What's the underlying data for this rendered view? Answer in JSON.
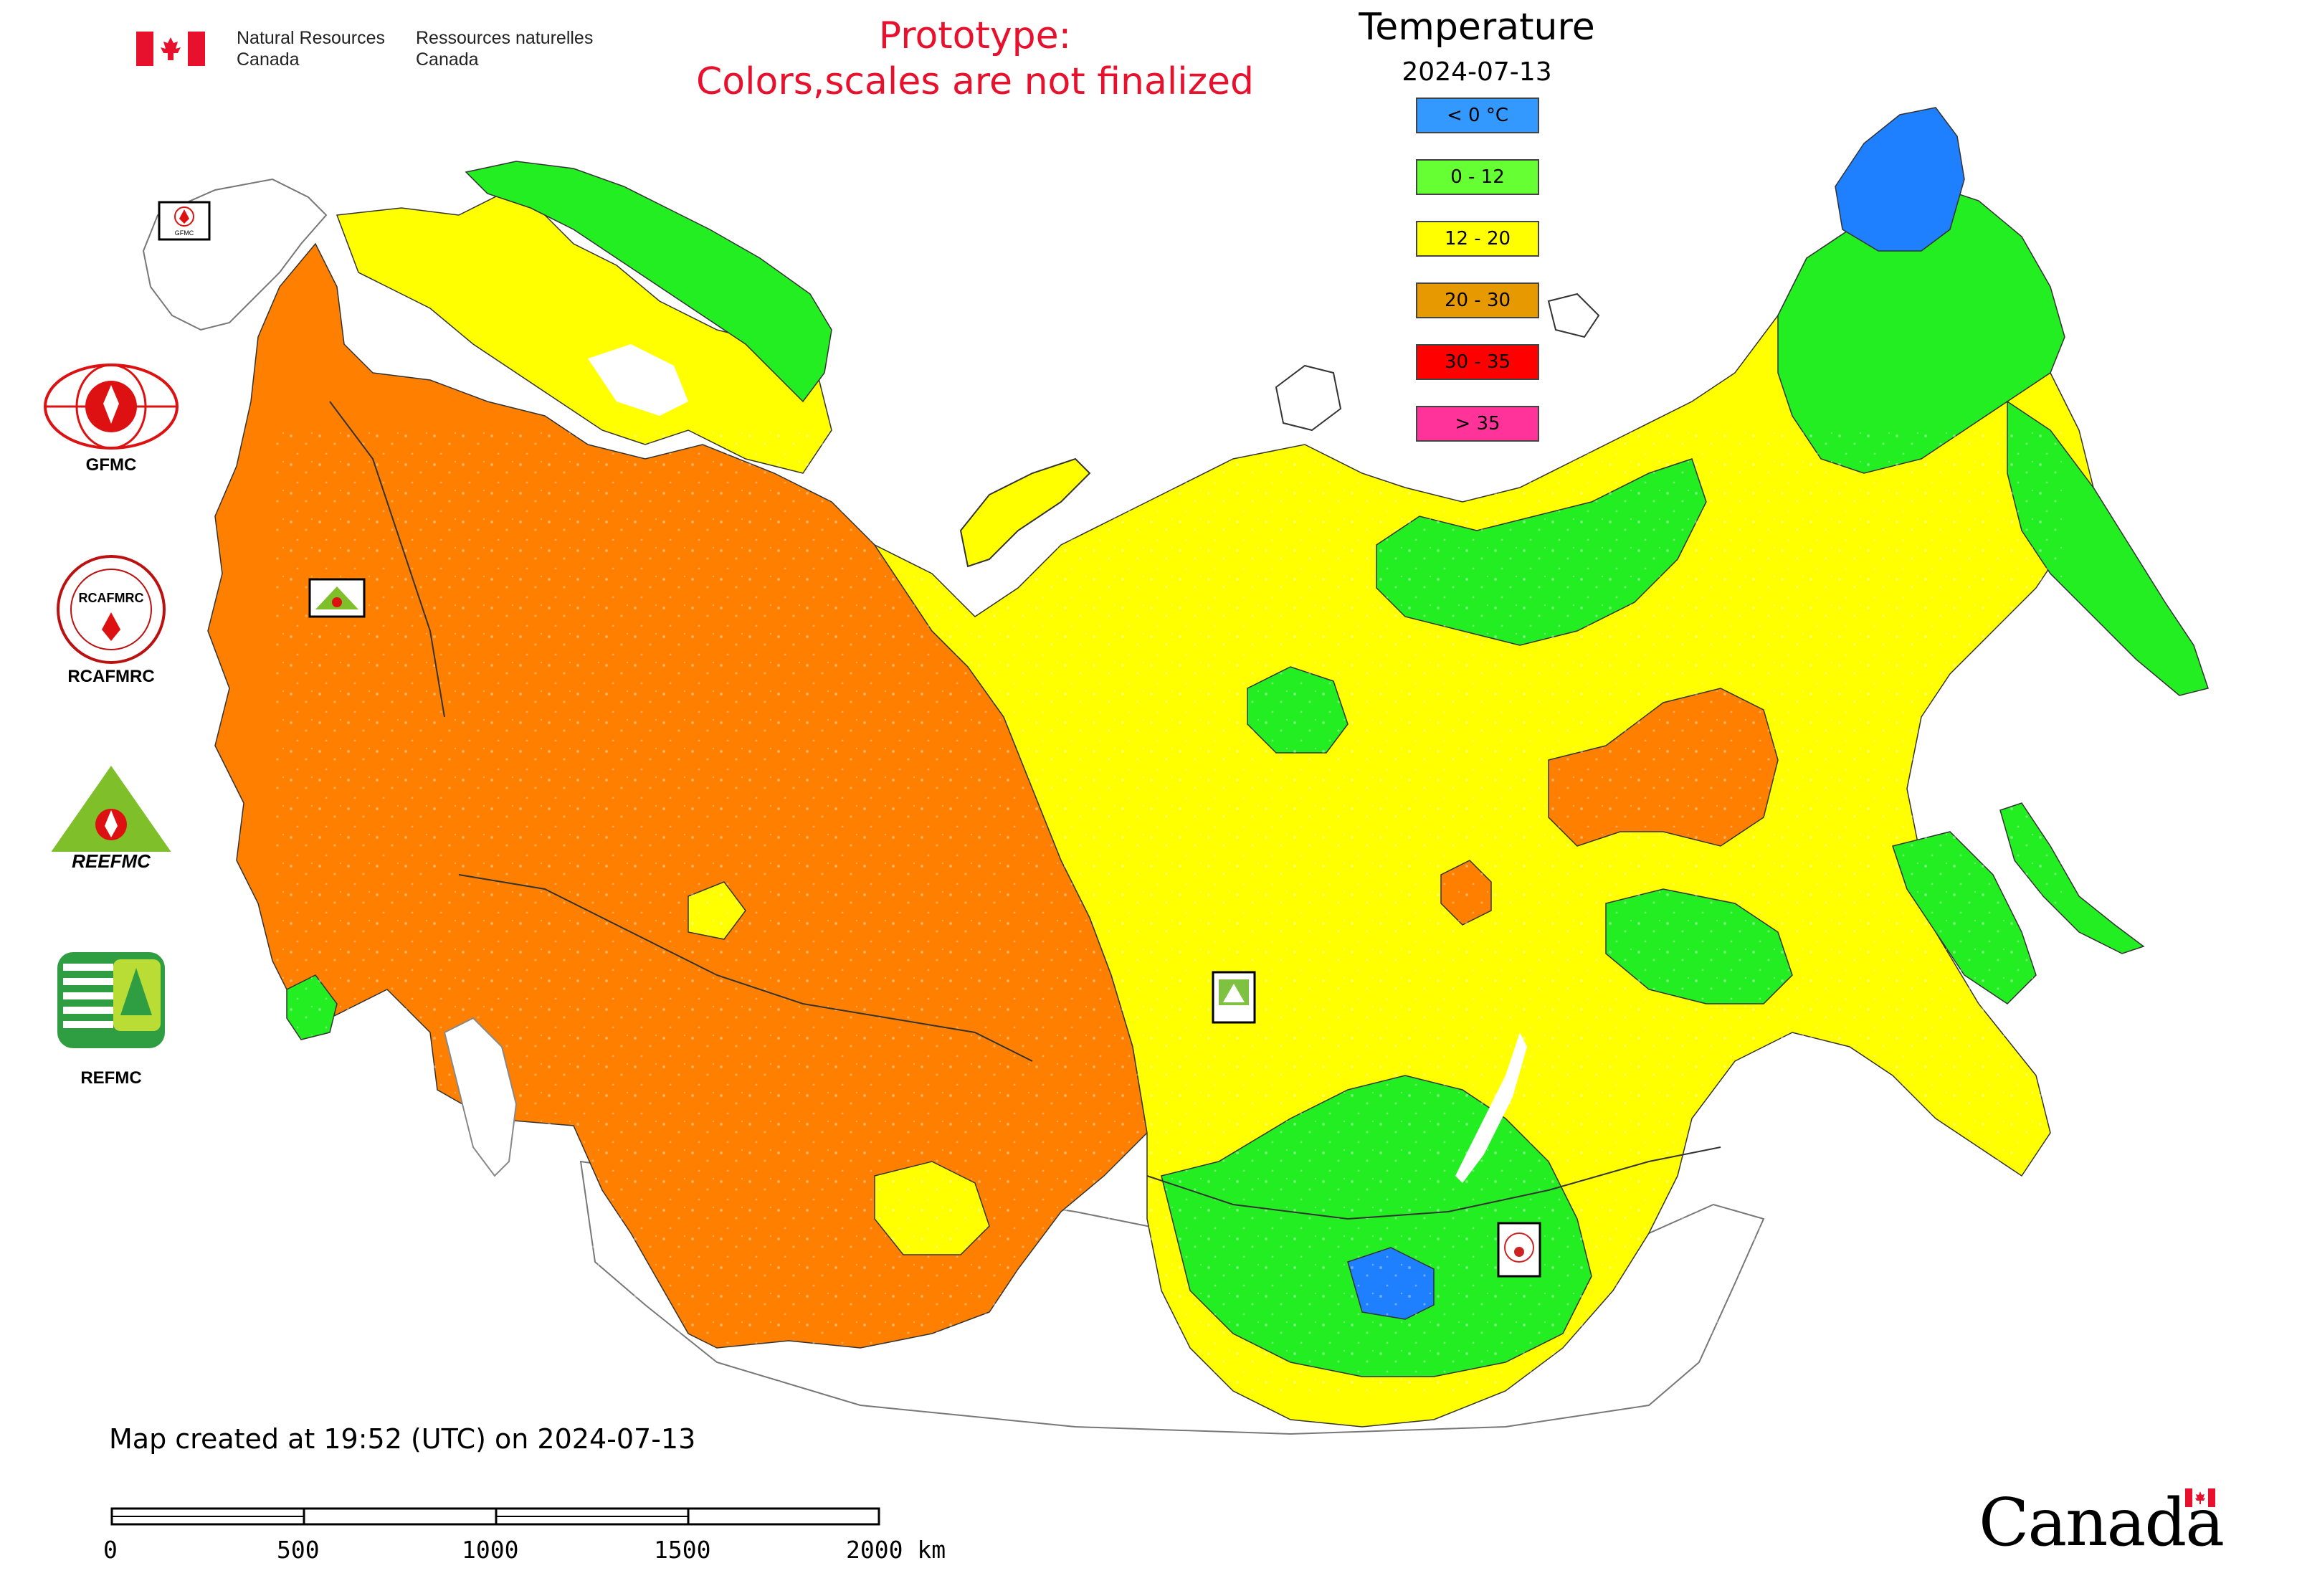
{
  "header": {
    "agency_en_line1": "Natural Resources",
    "agency_en_line2": "Canada",
    "agency_fr_line1": "Ressources naturelles",
    "agency_fr_line2": "Canada",
    "prototype_line1": "Prototype:",
    "prototype_line2": "Colors,scales are not finalized"
  },
  "legend": {
    "title": "Temperature",
    "date": "2024-07-13",
    "items": [
      {
        "label": "< 0 °C",
        "color": "#3399ff"
      },
      {
        "label": "0 - 12",
        "color": "#66ff33"
      },
      {
        "label": "12 - 20",
        "color": "#ffff00"
      },
      {
        "label": "20 - 30",
        "color": "#e69900"
      },
      {
        "label": "30 - 35",
        "color": "#ff0000"
      },
      {
        "label": "> 35",
        "color": "#ff3399"
      }
    ]
  },
  "partners": {
    "gfmc": "GFMC",
    "rcafmrc": "RCAFMRC",
    "reefmc": "REEFMC",
    "refmc": "REFMC"
  },
  "map_colors": {
    "cold": "#1e7fff",
    "cool": "#22ee22",
    "mild": "#ffff00",
    "warm": "#ff8000",
    "water": "#ffffff",
    "border": "#333333"
  },
  "footer": {
    "created": "Map created at 19:52 (UTC) on 2024-07-13",
    "scale_labels": [
      "0",
      "500",
      "1000",
      "1500",
      "2000 km"
    ],
    "wordmark": "Canada"
  }
}
